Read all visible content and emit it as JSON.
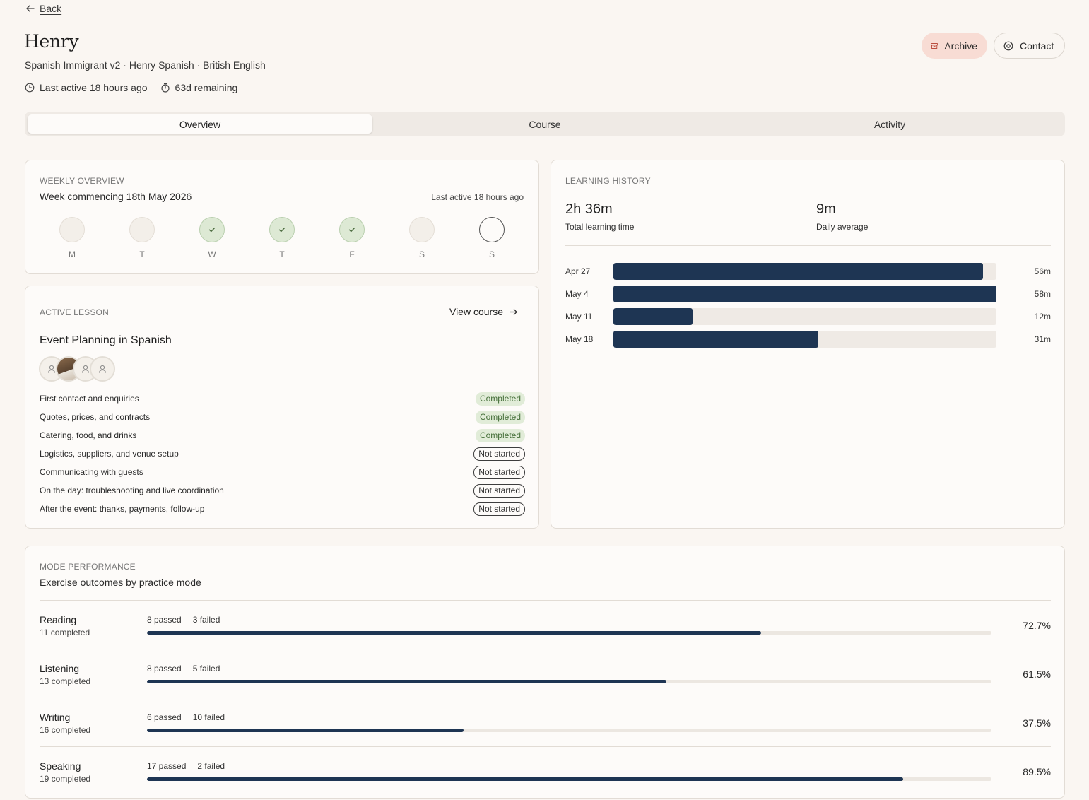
{
  "header": {
    "back_label": "Back",
    "name": "Henry",
    "subtitle": "Spanish Immigrant v2 · Henry Spanish · British English",
    "last_active": "Last active 18 hours ago",
    "remaining": "63d remaining",
    "archive_label": "Archive",
    "contact_label": "Contact"
  },
  "tabs": [
    {
      "label": "Overview",
      "active": true
    },
    {
      "label": "Course",
      "active": false
    },
    {
      "label": "Activity",
      "active": false
    }
  ],
  "weekly": {
    "eyebrow": "Weekly overview",
    "week": "Week commencing 18th May 2026",
    "last_active": "Last active 18 hours ago",
    "days": [
      {
        "label": "M",
        "status": "none"
      },
      {
        "label": "T",
        "status": "none"
      },
      {
        "label": "W",
        "status": "done"
      },
      {
        "label": "T",
        "status": "done"
      },
      {
        "label": "F",
        "status": "done"
      },
      {
        "label": "S",
        "status": "none"
      },
      {
        "label": "S",
        "status": "today"
      }
    ]
  },
  "lesson": {
    "eyebrow": "Active lesson",
    "view_course": "View course",
    "title": "Event Planning in Spanish",
    "items": [
      {
        "label": "First contact and enquiries",
        "status": "Completed"
      },
      {
        "label": "Quotes, prices, and contracts",
        "status": "Completed"
      },
      {
        "label": "Catering, food, and drinks",
        "status": "Completed"
      },
      {
        "label": "Logistics, suppliers, and venue setup",
        "status": "Not started"
      },
      {
        "label": "Communicating with guests",
        "status": "Not started"
      },
      {
        "label": "On the day: troubleshooting and live coordination",
        "status": "Not started"
      },
      {
        "label": "After the event: thanks, payments, follow-up",
        "status": "Not started"
      }
    ]
  },
  "history": {
    "eyebrow": "Learning history",
    "total_value": "2h 36m",
    "total_label": "Total learning time",
    "avg_value": "9m",
    "avg_label": "Daily average",
    "max_minutes": 58,
    "weeks": [
      {
        "label": "Apr 27",
        "minutes": 56,
        "display": "56m"
      },
      {
        "label": "May 4",
        "minutes": 58,
        "display": "58m"
      },
      {
        "label": "May 11",
        "minutes": 12,
        "display": "12m"
      },
      {
        "label": "May 18",
        "minutes": 31,
        "display": "31m"
      }
    ]
  },
  "modes": {
    "eyebrow": "Mode performance",
    "subtitle": "Exercise outcomes by practice mode",
    "items": [
      {
        "name": "Reading",
        "completed": "11 completed",
        "passed": "8 passed",
        "failed": "3 failed",
        "percent": 72.7,
        "percent_label": "72.7%"
      },
      {
        "name": "Listening",
        "completed": "13 completed",
        "passed": "8 passed",
        "failed": "5 failed",
        "percent": 61.5,
        "percent_label": "61.5%"
      },
      {
        "name": "Writing",
        "completed": "16 completed",
        "passed": "6 passed",
        "failed": "10 failed",
        "percent": 37.5,
        "percent_label": "37.5%"
      },
      {
        "name": "Speaking",
        "completed": "19 completed",
        "passed": "17 passed",
        "failed": "2 failed",
        "percent": 89.5,
        "percent_label": "89.5%"
      }
    ]
  },
  "colors": {
    "background": "#faf6f2",
    "accent_navy": "#1e3553",
    "completed_bg": "#e1ecd8",
    "archive_bg": "#f8dcd4"
  }
}
